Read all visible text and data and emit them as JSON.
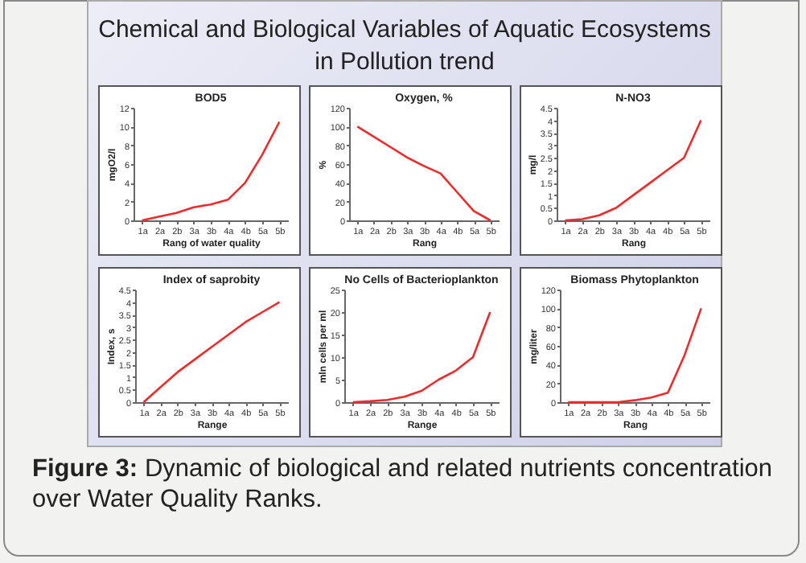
{
  "chart_data": [
    {
      "type": "other",
      "title": "Chemical and Biological Variables of Aquatic Ecosystems in Pollution trend"
    },
    {
      "type": "line",
      "title": "BOD5",
      "xlabel": "Rang of water quality",
      "ylabel": "mgO2/l",
      "categories": [
        "1a",
        "2a",
        "2b",
        "3a",
        "3b",
        "4a",
        "4b",
        "5a",
        "5b"
      ],
      "series": [
        {
          "color": "#ee2a2a",
          "values": [
            0,
            0.4,
            0.8,
            1.4,
            1.7,
            2.2,
            4,
            7,
            10.5
          ]
        }
      ],
      "ylim": [
        0,
        12
      ],
      "yticks": [
        0,
        2,
        4,
        6,
        8,
        10,
        12
      ]
    },
    {
      "type": "line",
      "title": "Oxygen, %",
      "xlabel": "Rang",
      "ylabel": "%",
      "categories": [
        "1a",
        "2a",
        "2b",
        "3a",
        "3b",
        "4a",
        "4b",
        "5a",
        "5b"
      ],
      "series": [
        {
          "color": "#ee2a2a",
          "values": [
            100,
            89,
            78,
            67,
            58,
            50,
            30,
            10,
            0
          ]
        }
      ],
      "ylim": [
        0,
        120
      ],
      "yticks": [
        0,
        20,
        40,
        60,
        80,
        100,
        120
      ]
    },
    {
      "type": "line",
      "title": "N-NO3",
      "xlabel": "Rang",
      "ylabel": "mg/l",
      "categories": [
        "1a",
        "2a",
        "2b",
        "3a",
        "3b",
        "4a",
        "4b",
        "5a",
        "5b"
      ],
      "series": [
        {
          "color": "#ee2a2a",
          "values": [
            0,
            0.05,
            0.2,
            0.5,
            1.0,
            1.5,
            2.0,
            2.5,
            4.0
          ]
        }
      ],
      "ylim": [
        0,
        4.5
      ],
      "yticks": [
        0,
        0.5,
        1,
        1.5,
        2,
        2.5,
        3,
        3.5,
        4,
        4.5
      ]
    },
    {
      "type": "line",
      "title": "Index of saprobity",
      "xlabel": "Range",
      "ylabel": "Index, s",
      "categories": [
        "1a",
        "2a",
        "2b",
        "3a",
        "3b",
        "4a",
        "4b",
        "5a",
        "5b"
      ],
      "series": [
        {
          "color": "#ee2a2a",
          "values": [
            0,
            0.6,
            1.2,
            1.7,
            2.2,
            2.7,
            3.2,
            3.6,
            4.0
          ]
        }
      ],
      "ylim": [
        0,
        4.5
      ],
      "yticks": [
        0,
        0.5,
        1,
        1.5,
        2,
        2.5,
        3,
        3.5,
        4,
        4.5
      ]
    },
    {
      "type": "line",
      "title": "No Cells of Bacterioplankton",
      "xlabel": "Range",
      "ylabel": "mln cells per ml",
      "categories": [
        "1a",
        "2a",
        "2b",
        "3a",
        "3b",
        "4a",
        "4b",
        "5a",
        "5b"
      ],
      "series": [
        {
          "color": "#ee2a2a",
          "values": [
            0,
            0.2,
            0.5,
            1.2,
            2.5,
            5,
            7,
            10,
            20
          ]
        }
      ],
      "ylim": [
        0,
        25
      ],
      "yticks": [
        0,
        5,
        10,
        15,
        20,
        25
      ]
    },
    {
      "type": "line",
      "title": "Biomass Phytoplankton",
      "xlabel": "Rang",
      "ylabel": "mg/liter",
      "categories": [
        "1a",
        "2a",
        "2b",
        "3a",
        "3b",
        "4a",
        "4b",
        "5a",
        "5b"
      ],
      "series": [
        {
          "color": "#ee2a2a",
          "values": [
            0,
            0,
            0,
            0,
            2,
            5,
            10,
            50,
            100
          ]
        }
      ],
      "ylim": [
        0,
        120
      ],
      "yticks": [
        0,
        20,
        40,
        60,
        80,
        100,
        120
      ]
    },
    {
      "type": "other",
      "annotations": [
        "Figure 3: Dynamic of biological and related nutrients concentration over Water Quality Ranks."
      ]
    }
  ]
}
